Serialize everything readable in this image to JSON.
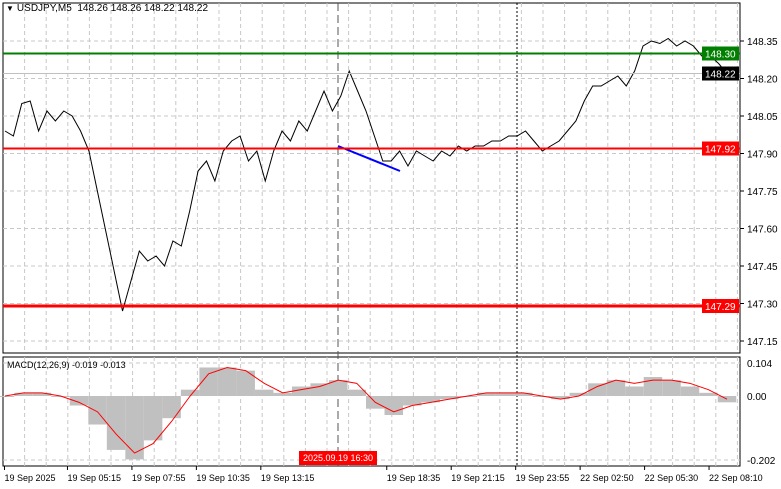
{
  "header": {
    "symbol": "USDJPY,M5",
    "ohlc": "148.26 148.26 148.22 148.22"
  },
  "macd_header": {
    "label": "MACD(12,26,9)",
    "values": "-0.019 -0.013"
  },
  "colors": {
    "price": "#000000",
    "green_level": "#007f00",
    "red_level": "#ff0000",
    "trend": "#0000ff",
    "hist": "#c0c0c0",
    "signal": "#ff0000"
  },
  "chart_data": [
    {
      "type": "line",
      "title": "USDJPY,M5",
      "ylim": [
        147.1,
        148.48
      ],
      "y_ticks": [
        "148.35",
        "148.20",
        "148.05",
        "147.90",
        "147.75",
        "147.60",
        "147.45",
        "147.30",
        "147.15"
      ],
      "x_tick_labels": [
        "19 Sep 2025",
        "19 Sep 05:15",
        "19 Sep 07:55",
        "19 Sep 10:35",
        "19 Sep 13:15",
        "19 Sep 18:35",
        "19 Sep 21:15",
        "19 Sep 23:55",
        "22 Sep 02:50",
        "22 Sep 05:30",
        "22 Sep 08:10"
      ],
      "crosshair_time_label": "2025.09.19 16:30",
      "current_price": "148.22",
      "levels": [
        {
          "price": 148.3,
          "label": "148.30",
          "color": "green"
        },
        {
          "price": 147.92,
          "label": "147.92",
          "color": "red"
        },
        {
          "price": 147.29,
          "label": "147.29",
          "color": "red"
        }
      ],
      "trendline": {
        "from": 147.93,
        "to": 147.83
      },
      "close": [
        147.99,
        147.97,
        148.1,
        148.11,
        147.99,
        148.07,
        148.03,
        148.07,
        148.05,
        147.99,
        147.91,
        147.75,
        147.59,
        147.43,
        147.27,
        147.39,
        147.51,
        147.47,
        147.49,
        147.45,
        147.55,
        147.53,
        147.67,
        147.83,
        147.87,
        147.79,
        147.91,
        147.95,
        147.97,
        147.87,
        147.91,
        147.79,
        147.91,
        147.99,
        147.95,
        148.03,
        147.99,
        148.07,
        148.15,
        148.07,
        148.13,
        148.23,
        148.15,
        148.07,
        147.97,
        147.87,
        147.87,
        147.91,
        147.85,
        147.91,
        147.89,
        147.87,
        147.91,
        147.89,
        147.93,
        147.91,
        147.93,
        147.93,
        147.95,
        147.95,
        147.97,
        147.97,
        147.99,
        147.95,
        147.91,
        147.93,
        147.95,
        147.99,
        148.03,
        148.11,
        148.17,
        148.17,
        148.19,
        148.21,
        148.17,
        148.23,
        148.33,
        148.35,
        148.34,
        148.36,
        148.33,
        148.35,
        148.33,
        148.29,
        148.29,
        148.26,
        148.22
      ]
    },
    {
      "type": "bar",
      "title": "MACD(12,26,9)",
      "ylim": [
        -0.215,
        0.115
      ],
      "y_ticks": [
        "0.104",
        "0.00",
        "-0.202"
      ],
      "histogram": [
        0.0,
        0.01,
        0.01,
        0.0,
        -0.03,
        -0.09,
        -0.17,
        -0.2,
        -0.14,
        -0.07,
        0.02,
        0.09,
        0.09,
        0.08,
        0.02,
        0.01,
        0.03,
        0.04,
        0.05,
        0.02,
        -0.04,
        -0.06,
        -0.03,
        -0.02,
        -0.01,
        0.0,
        0.01,
        0.01,
        0.01,
        0.0,
        -0.01,
        0.01,
        0.04,
        0.05,
        0.03,
        0.06,
        0.05,
        0.03,
        0.01,
        -0.02
      ],
      "signal": [
        0.0,
        0.01,
        0.01,
        0.0,
        -0.02,
        -0.05,
        -0.12,
        -0.18,
        -0.15,
        -0.08,
        0.0,
        0.07,
        0.09,
        0.08,
        0.04,
        0.01,
        0.02,
        0.03,
        0.05,
        0.04,
        -0.02,
        -0.05,
        -0.03,
        -0.02,
        -0.01,
        0.0,
        0.01,
        0.01,
        0.01,
        0.0,
        -0.01,
        0.0,
        0.03,
        0.05,
        0.04,
        0.05,
        0.05,
        0.04,
        0.02,
        -0.01
      ]
    }
  ]
}
